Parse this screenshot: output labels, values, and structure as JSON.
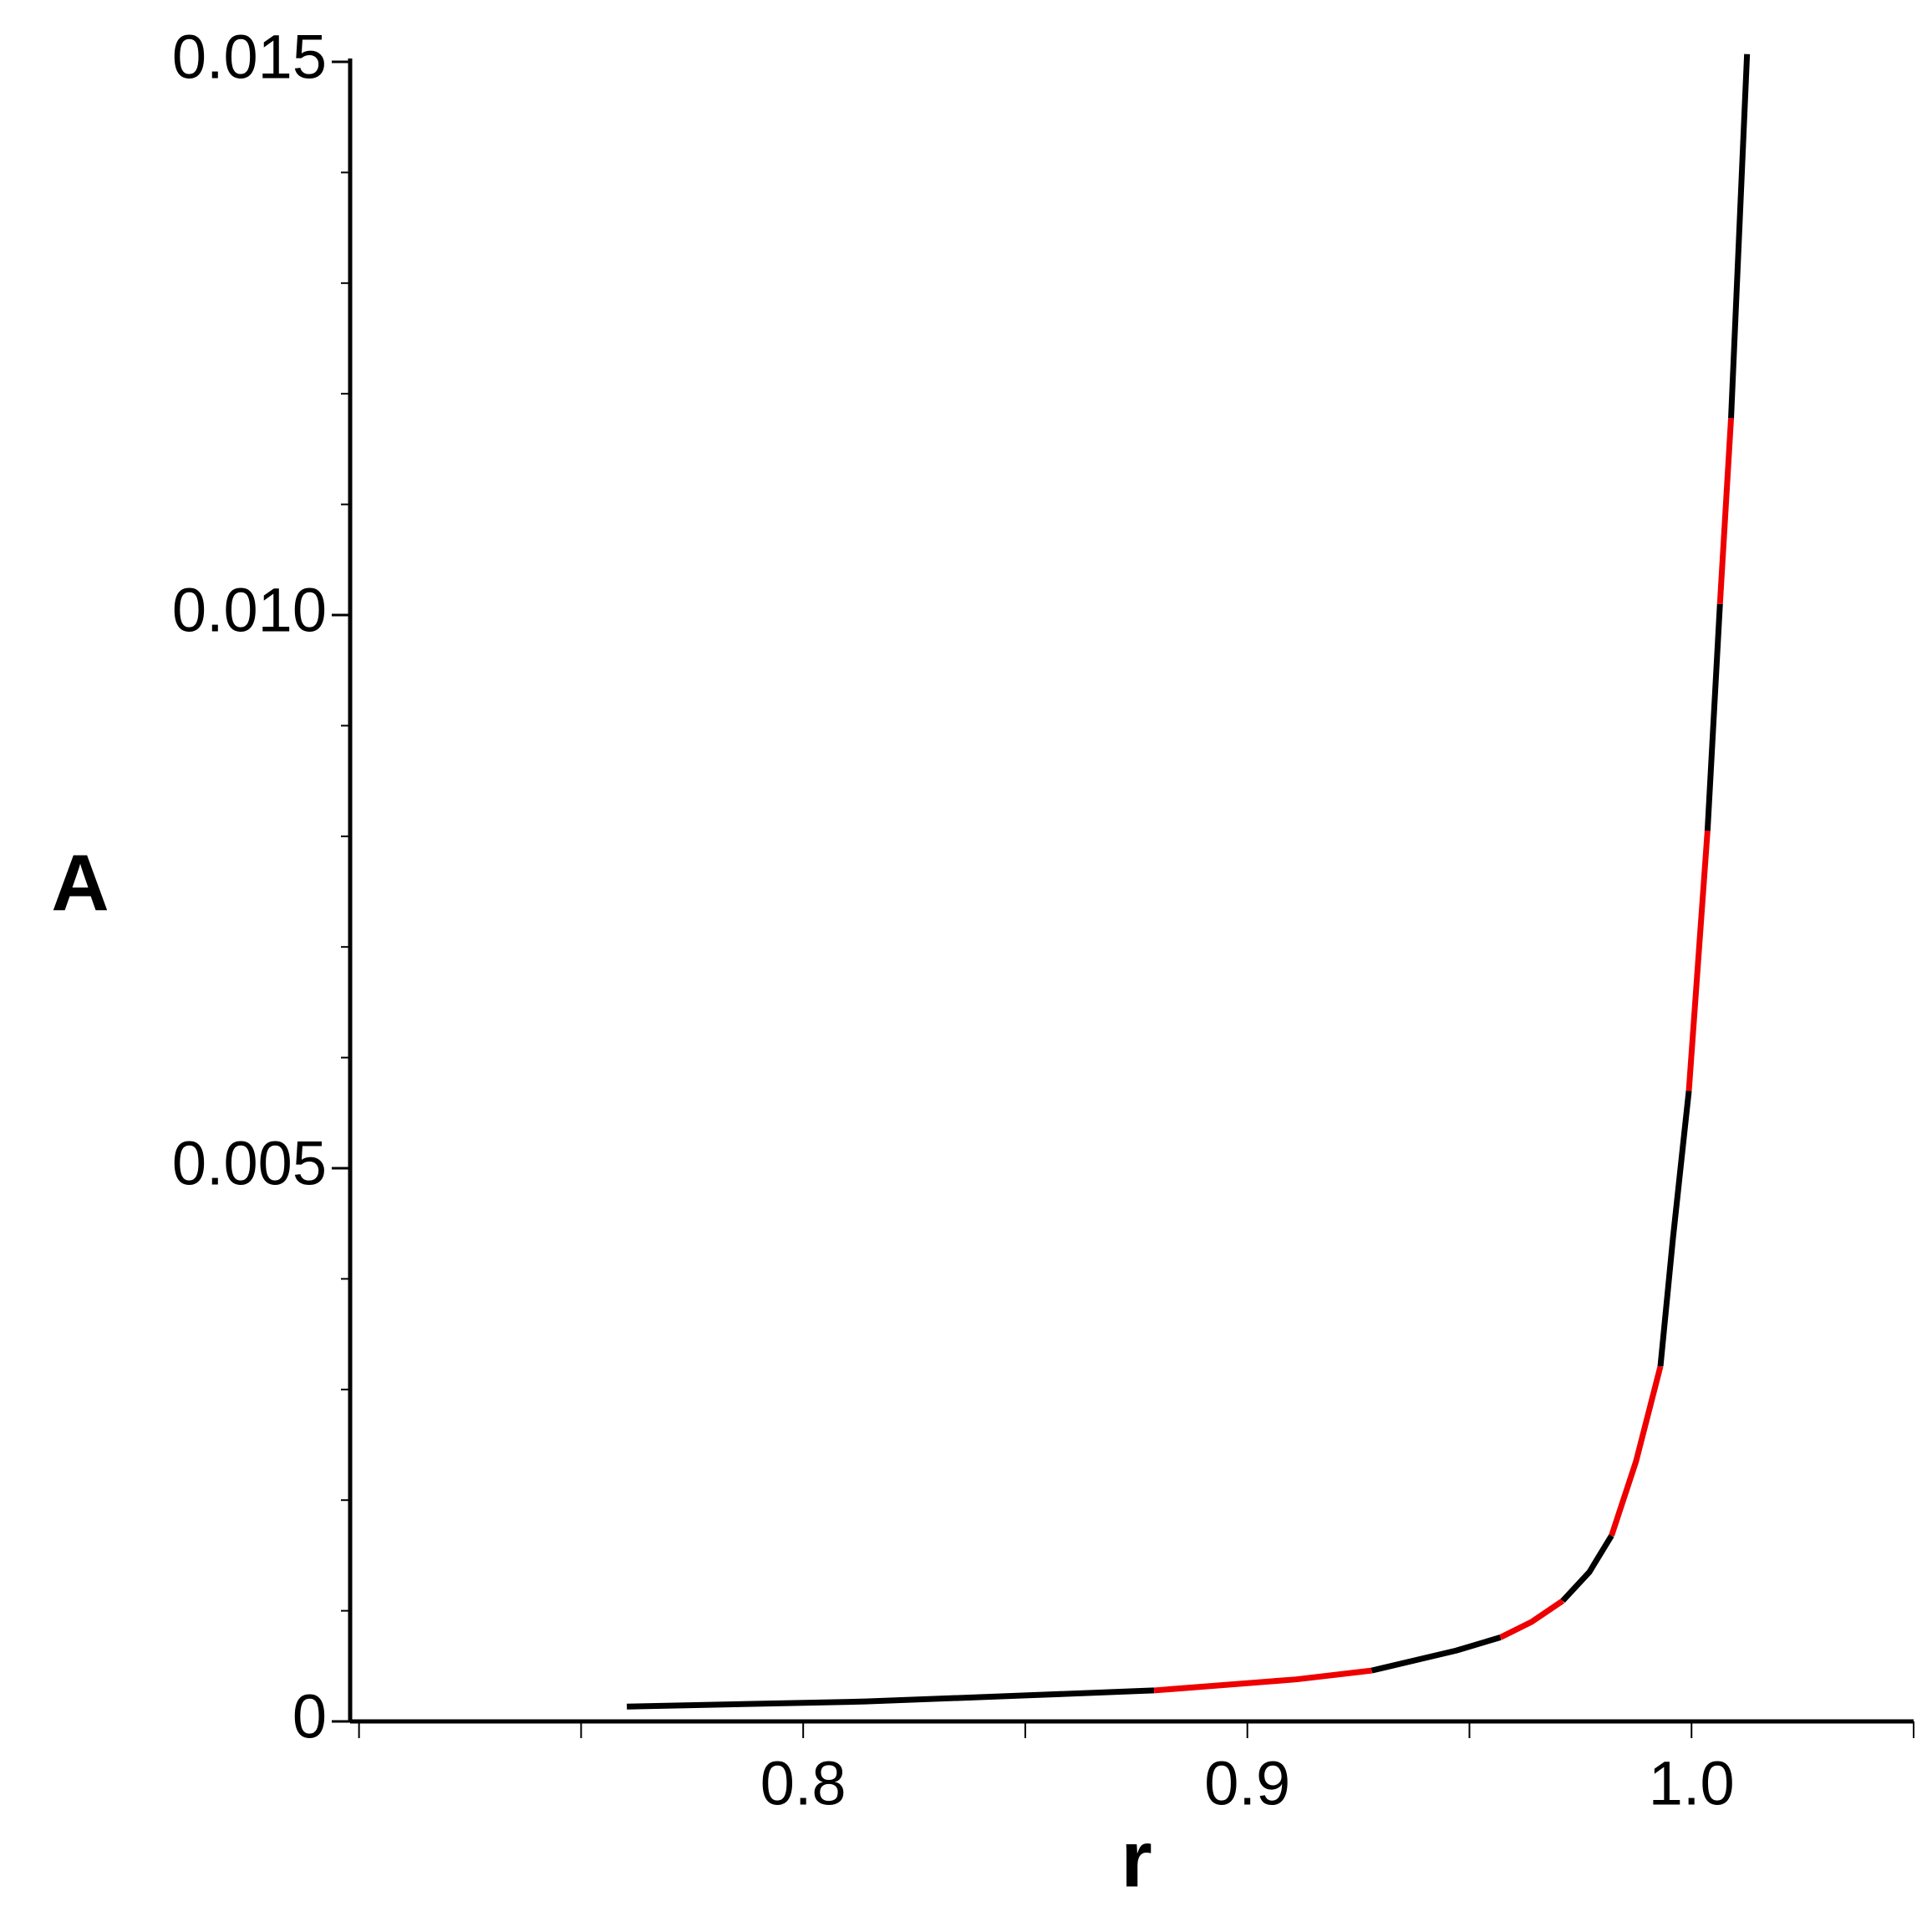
{
  "chart_data": {
    "type": "line",
    "x_label": "r",
    "y_label": "A",
    "xlim": [
      0.698,
      1.05
    ],
    "ylim": [
      0,
      0.015
    ],
    "xticks": [
      0.8,
      0.9,
      {
        "value": 1,
        "label": "1.0"
      }
    ],
    "xminorticks": [
      0.7,
      0.75,
      0.85,
      0.95,
      1.05
    ],
    "yticks": [
      0,
      0.005,
      {
        "value": 0.01,
        "label": "0.010"
      },
      0.015
    ],
    "yminorticks": [
      0.001,
      0.002,
      0.003,
      0.004,
      0.006,
      0.007,
      0.008,
      0.009,
      0.011,
      0.012,
      0.013,
      0.014
    ],
    "series": [
      {
        "color": "#000000",
        "x": [
          0.7603,
          0.814,
          0.85,
          0.879
        ],
        "values": [
          0.000134,
          0.00018,
          0.000235,
          0.00028
        ]
      },
      {
        "color": "#ee0000",
        "x": [
          0.879,
          0.911,
          0.928
        ],
        "values": [
          0.00028,
          0.00038,
          0.00046
        ]
      },
      {
        "color": "#000000",
        "x": [
          0.928,
          0.947,
          0.957
        ],
        "values": [
          0.00046,
          0.00064,
          0.00076
        ]
      },
      {
        "color": "#ee0000",
        "x": [
          0.957,
          0.964,
          0.971
        ],
        "values": [
          0.00076,
          0.0009,
          0.00109
        ]
      },
      {
        "color": "#000000",
        "x": [
          0.971,
          0.977,
          0.982
        ],
        "values": [
          0.00109,
          0.00135,
          0.00168
        ]
      },
      {
        "color": "#ee0000",
        "x": [
          0.982,
          0.9875,
          0.993
        ],
        "values": [
          0.00168,
          0.00235,
          0.00321
        ]
      },
      {
        "color": "#000000",
        "x": [
          0.993,
          0.9958,
          0.9994
        ],
        "values": [
          0.00321,
          0.00436,
          0.0057
        ]
      },
      {
        "color": "#ee0000",
        "x": [
          0.9994,
          1.0036
        ],
        "values": [
          0.0057,
          0.00805
        ]
      },
      {
        "color": "#000000",
        "x": [
          1.0036,
          1.0064
        ],
        "values": [
          0.00805,
          0.0101
        ]
      },
      {
        "color": "#ee0000",
        "x": [
          1.0064,
          1.0089
        ],
        "values": [
          0.0101,
          0.01178
        ]
      },
      {
        "color": "#000000",
        "x": [
          1.0089,
          1.0125
        ],
        "values": [
          0.01178,
          0.01507
        ]
      }
    ]
  }
}
